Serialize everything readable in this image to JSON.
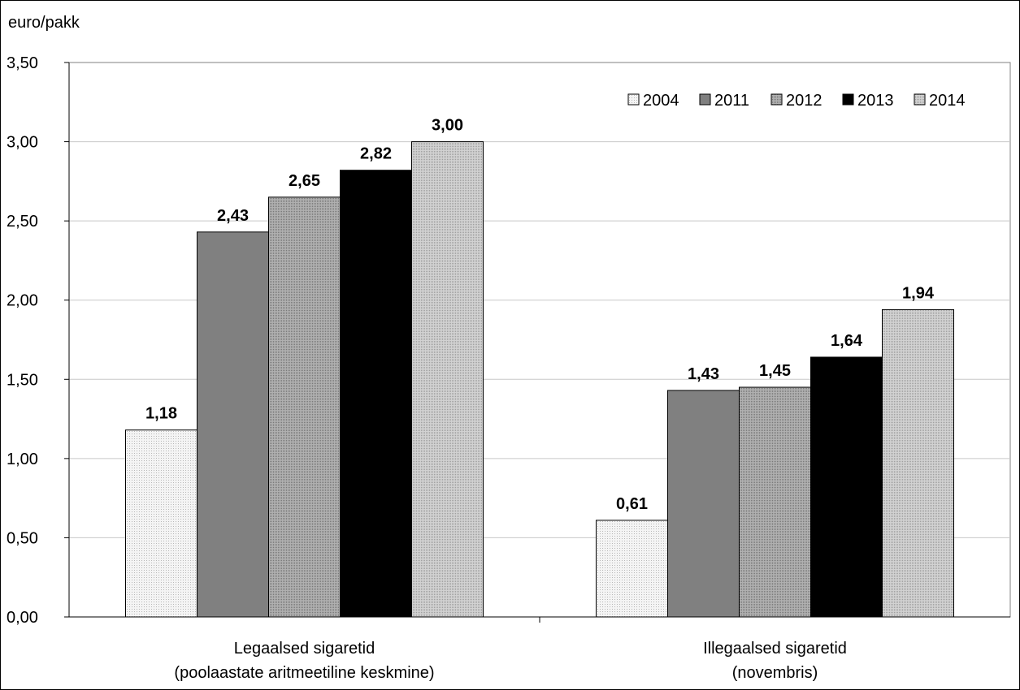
{
  "chart_data": {
    "type": "bar",
    "ylabel": "euro/pakk",
    "ylim": [
      0,
      3.5
    ],
    "yticks": [
      "0,00",
      "0,50",
      "1,00",
      "1,50",
      "2,00",
      "2,50",
      "3,00",
      "3,50"
    ],
    "ytick_values": [
      0,
      0.5,
      1,
      1.5,
      2,
      2.5,
      3,
      3.5
    ],
    "grid": true,
    "legend_position": "top-right",
    "categories": [
      [
        "Legaalsed sigaretid",
        "(poolaastate aritmeetiline keskmine)"
      ],
      [
        "Illegaalsed sigaretid",
        "(novembris)"
      ]
    ],
    "series": [
      {
        "name": "2004",
        "values": [
          1.18,
          0.61
        ],
        "labels": [
          "1,18",
          "0,61"
        ],
        "color": "#eeeeee",
        "pattern": "dots-fine"
      },
      {
        "name": "2011",
        "values": [
          2.43,
          1.43
        ],
        "labels": [
          "2,43",
          "1,43"
        ],
        "color": "#808080",
        "pattern": "solid"
      },
      {
        "name": "2012",
        "values": [
          2.65,
          1.45
        ],
        "labels": [
          "2,65",
          "1,45"
        ],
        "color": "#9a9a9a",
        "pattern": "dots"
      },
      {
        "name": "2013",
        "values": [
          2.82,
          1.64
        ],
        "labels": [
          "2,82",
          "1,64"
        ],
        "color": "#000000",
        "pattern": "solid"
      },
      {
        "name": "2014",
        "values": [
          3.0,
          1.94
        ],
        "labels": [
          "3,00",
          "1,94"
        ],
        "color": "#c0c0c0",
        "pattern": "dots"
      }
    ]
  }
}
